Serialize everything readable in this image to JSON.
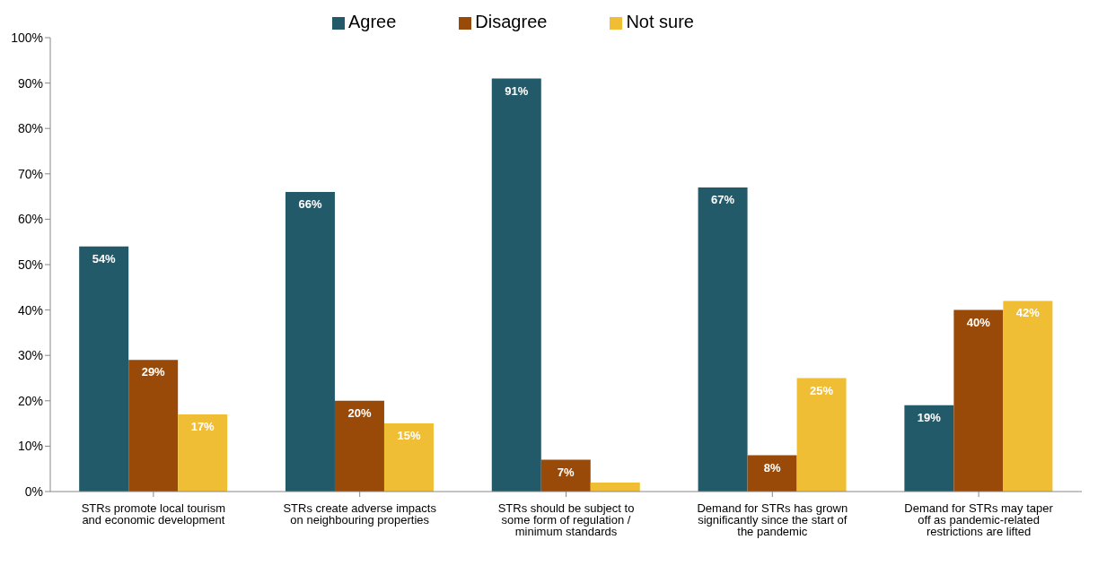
{
  "chart_data": {
    "type": "bar",
    "categories": [
      "STRs promote local tourism and economic development",
      "STRs create adverse impacts on neighbouring properties",
      "STRs should be subject to some form of regulation / minimum standards",
      "Demand for STRs has grown significantly since the start of the pandemic",
      "Demand for STRs may taper off as pandemic-related restrictions are lifted"
    ],
    "series": [
      {
        "name": "Agree",
        "color": "#235a6a",
        "values": [
          54,
          66,
          91,
          67,
          19
        ],
        "value_labels": [
          "54%",
          "66%",
          "91%",
          "67%",
          "19%"
        ]
      },
      {
        "name": "Disagree",
        "color": "#9a4a08",
        "values": [
          29,
          20,
          7,
          8,
          40
        ],
        "value_labels": [
          "29%",
          "20%",
          "7%",
          "8%",
          "40%"
        ]
      },
      {
        "name": "Not sure",
        "color": "#efbe35",
        "values": [
          17,
          15,
          2,
          25,
          42
        ],
        "value_labels": [
          "17%",
          "15%",
          null,
          "25%",
          "42%"
        ]
      }
    ],
    "ylim": [
      0,
      100
    ],
    "yticks": [
      {
        "value": 0,
        "label": "0%"
      },
      {
        "value": 10,
        "label": "10%"
      },
      {
        "value": 20,
        "label": "20%"
      },
      {
        "value": 30,
        "label": "30%"
      },
      {
        "value": 40,
        "label": "40%"
      },
      {
        "value": 50,
        "label": "50%"
      },
      {
        "value": 60,
        "label": "60%"
      },
      {
        "value": 70,
        "label": "70%"
      },
      {
        "value": 80,
        "label": "80%"
      },
      {
        "value": 90,
        "label": "90%"
      },
      {
        "value": 100,
        "label": "100%"
      }
    ],
    "grid": false,
    "legend": "top"
  }
}
